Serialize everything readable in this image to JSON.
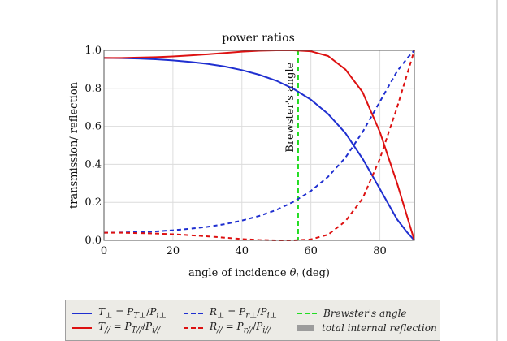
{
  "chart_data": {
    "type": "line",
    "title": "power ratios",
    "xlabel": "angle of incidence",
    "xlabel_symbol": "θ",
    "xlabel_subscript": "i",
    "xlabel_unit": "(deg)",
    "ylabel": "transmission/ reflection",
    "xlim": [
      0,
      90
    ],
    "ylim": [
      0,
      1.0
    ],
    "x_ticks": [
      "0",
      "20",
      "40",
      "60",
      "80"
    ],
    "x_tick_values": [
      0,
      20,
      40,
      60,
      80
    ],
    "y_ticks": [
      "0.0",
      "0.2",
      "0.4",
      "0.6",
      "0.8",
      "1.0"
    ],
    "y_tick_values": [
      0,
      0.2,
      0.4,
      0.6,
      0.8,
      1.0
    ],
    "grid": true,
    "annotation": {
      "text": "Brewster's angle",
      "x": 56.3
    },
    "x": [
      0,
      5,
      10,
      15,
      20,
      25,
      30,
      35,
      40,
      45,
      50,
      55,
      60,
      65,
      70,
      75,
      80,
      85,
      88,
      90
    ],
    "series": [
      {
        "color": "#1f2fd0",
        "dash": "solid",
        "values": [
          0.96,
          0.959,
          0.957,
          0.953,
          0.947,
          0.939,
          0.929,
          0.915,
          0.896,
          0.872,
          0.84,
          0.797,
          0.74,
          0.665,
          0.565,
          0.43,
          0.27,
          0.11,
          0.04,
          0.0
        ]
      },
      {
        "color": "#dd1111",
        "dash": "solid",
        "values": [
          0.96,
          0.96,
          0.962,
          0.964,
          0.968,
          0.973,
          0.979,
          0.986,
          0.993,
          0.998,
          1.0,
          1.0,
          0.995,
          0.97,
          0.9,
          0.78,
          0.57,
          0.3,
          0.12,
          0.0
        ]
      },
      {
        "color": "#1f2fd0",
        "dash": "dashed",
        "values": [
          0.04,
          0.041,
          0.043,
          0.047,
          0.053,
          0.061,
          0.071,
          0.085,
          0.104,
          0.128,
          0.16,
          0.203,
          0.26,
          0.335,
          0.435,
          0.57,
          0.73,
          0.89,
          0.96,
          1.0
        ]
      },
      {
        "color": "#dd1111",
        "dash": "dashed",
        "values": [
          0.04,
          0.04,
          0.038,
          0.036,
          0.032,
          0.027,
          0.021,
          0.014,
          0.007,
          0.002,
          0.0,
          0.0,
          0.005,
          0.03,
          0.1,
          0.22,
          0.43,
          0.7,
          0.88,
          1.0
        ]
      }
    ],
    "legend": [
      {
        "kind": "line",
        "color": "#1f2fd0",
        "dash": "solid",
        "lhs": "T",
        "lhs_sub": "⊥",
        "eq": " = ",
        "n_main": "P",
        "n_sub": "T⊥",
        "slash": "/",
        "d_main": "P",
        "d_sub": "i⊥"
      },
      {
        "kind": "line",
        "color": "#1f2fd0",
        "dash": "dashed",
        "lhs": "R",
        "lhs_sub": "⊥",
        "eq": " = ",
        "n_main": "P",
        "n_sub": "r⊥",
        "slash": "/",
        "d_main": "P",
        "d_sub": "i⊥"
      },
      {
        "kind": "line",
        "color": "#22dd22",
        "dash": "dashed",
        "text": "Brewster's angle"
      },
      {
        "kind": "line",
        "color": "#dd1111",
        "dash": "solid",
        "lhs": "T",
        "lhs_sub": "//",
        "eq": " = ",
        "n_main": "P",
        "n_sub": "T//",
        "slash": "/",
        "d_main": "P",
        "d_sub": "i//"
      },
      {
        "kind": "line",
        "color": "#dd1111",
        "dash": "dashed",
        "lhs": "R",
        "lhs_sub": "//",
        "eq": " = ",
        "n_main": "P",
        "n_sub": "r//",
        "slash": "/",
        "d_main": "P",
        "d_sub": "i//"
      },
      {
        "kind": "block",
        "color": "#9c9c9c",
        "text": "total internal reflection"
      }
    ],
    "brewster_color": "#22dd22"
  }
}
